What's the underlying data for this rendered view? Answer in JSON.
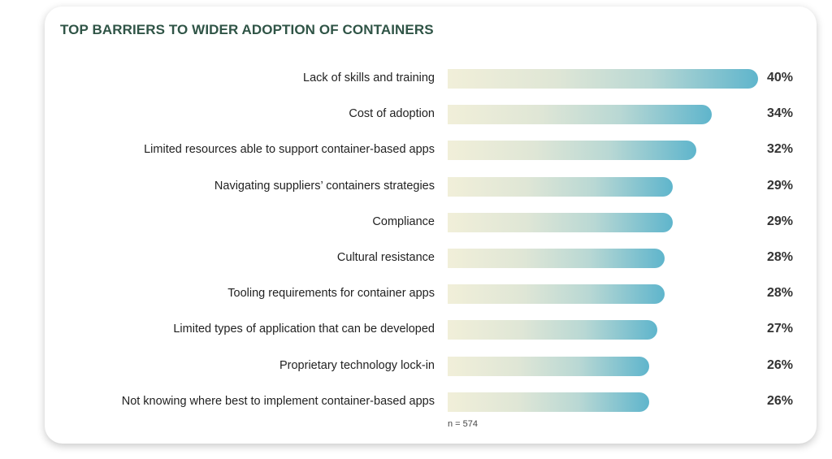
{
  "chart_data": {
    "type": "bar",
    "orientation": "horizontal",
    "title": "TOP BARRIERS TO WIDER ADOPTION OF CONTAINERS",
    "categories": [
      "Lack of skills and training",
      "Cost of adoption",
      "Limited resources able to support container-based apps",
      "Navigating suppliers’ containers strategies",
      "Compliance",
      "Cultural resistance",
      "Tooling requirements for container apps",
      "Limited types of application that can be developed",
      "Proprietary technology lock-in",
      "Not knowing where best to implement container-based apps"
    ],
    "values": [
      40,
      34,
      32,
      29,
      29,
      28,
      28,
      27,
      26,
      26
    ],
    "value_labels": [
      "40%",
      "34%",
      "32%",
      "29%",
      "29%",
      "28%",
      "28%",
      "27%",
      "26%",
      "26%"
    ],
    "unit": "%",
    "xlim": [
      0,
      40
    ],
    "grid": false,
    "note": "n = 574",
    "colors": {
      "bar_start": "#f1efd9",
      "bar_end": "#5fb5cc",
      "title": "#2f5446"
    }
  }
}
